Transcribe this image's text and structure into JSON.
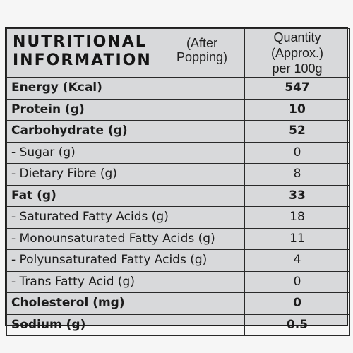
{
  "header": {
    "title_line1": "NUTRITIONAL",
    "title_line2": "INFORMATION",
    "note_line1": "(After",
    "note_line2": "Popping)",
    "column_line1": "Quantity (Approx.)",
    "column_line2": "per 100g"
  },
  "rows": [
    {
      "name": "Energy (Kcal)",
      "value": "547"
    },
    {
      "name": "Protein (g)",
      "value": "10"
    },
    {
      "name": "Carbohydrate (g)",
      "value": "52"
    },
    {
      "name": "- Sugar (g)",
      "value": "0"
    },
    {
      "name": "- Dietary Fibre (g)",
      "value": "8"
    },
    {
      "name": "Fat (g)",
      "value": "33"
    },
    {
      "name": "- Saturated Fatty Acids (g)",
      "value": "18"
    },
    {
      "name": "- Monounsaturated Fatty Acids (g)",
      "value": "11"
    },
    {
      "name": "- Polyunsaturated Fatty Acids (g)",
      "value": "4"
    },
    {
      "name": "- Trans Fatty Acid (g)",
      "value": "0"
    },
    {
      "name": "Cholesterol (mg)",
      "value": "0"
    },
    {
      "name": "Sodium (g)",
      "value": "0.5"
    }
  ]
}
